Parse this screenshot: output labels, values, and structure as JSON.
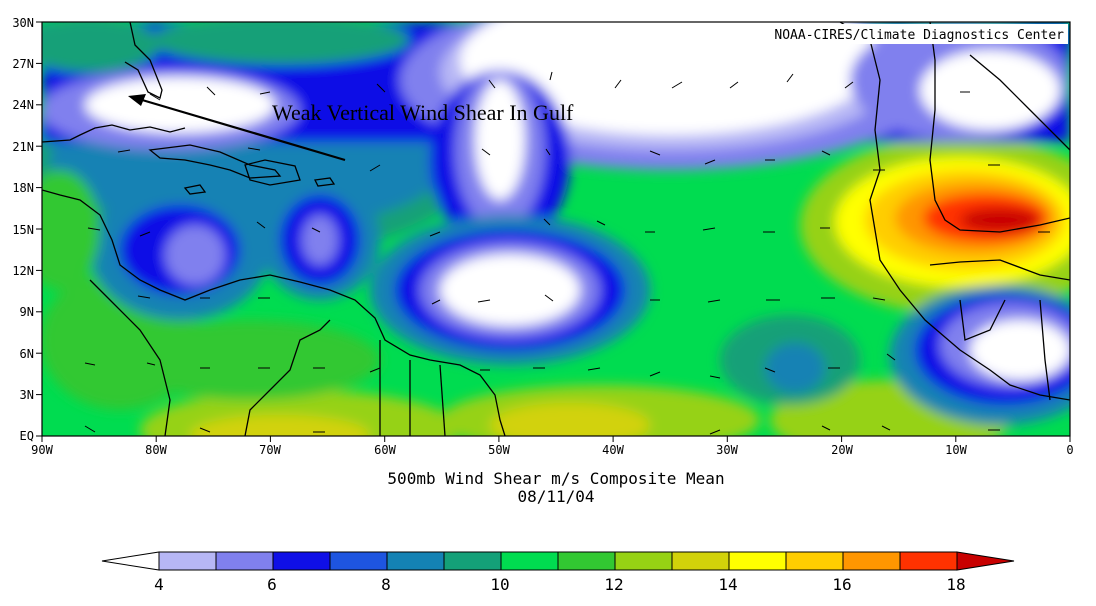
{
  "credit": "NOAA-CIRES/Climate Diagnostics Center",
  "annotation": "Weak Vertical Wind Shear In Gulf",
  "title_line1": "500mb Wind Shear m/s Composite Mean",
  "title_line2": "08/11/04",
  "lat_labels": [
    "30N",
    "27N",
    "24N",
    "21N",
    "18N",
    "15N",
    "12N",
    "9N",
    "6N",
    "3N",
    "EQ"
  ],
  "lon_labels": [
    "90W",
    "80W",
    "70W",
    "60W",
    "50W",
    "40W",
    "30W",
    "20W",
    "10W",
    "0"
  ],
  "colorbar": {
    "tick_labels": [
      "4",
      "6",
      "8",
      "10",
      "12",
      "14",
      "16",
      "18"
    ],
    "colors": [
      "#ffffff",
      "#b7b7f5",
      "#8080ee",
      "#0f0fe6",
      "#1e55e0",
      "#1482b4",
      "#14a078",
      "#00dc50",
      "#32c832",
      "#96d214",
      "#d2d20a",
      "#ffff00",
      "#ffcd00",
      "#ff9600",
      "#ff3200",
      "#c80000"
    ]
  },
  "contour_levels": [
    4,
    5,
    6,
    7,
    8,
    9,
    10,
    11,
    12,
    13,
    14,
    15,
    16,
    17,
    18
  ]
}
